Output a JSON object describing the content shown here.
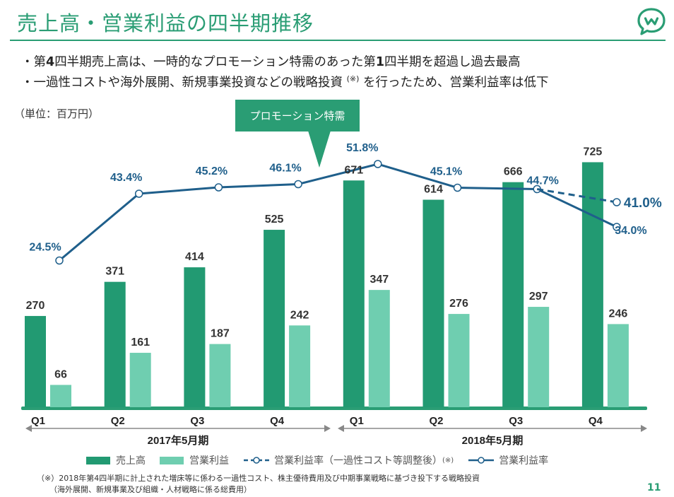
{
  "title": "売上高・営業利益の四半期推移",
  "bullets": {
    "b1_pre": "・第",
    "b1_num1": "4",
    "b1_mid": "四半期売上高は、一時的なプロモーション特需のあった第",
    "b1_num2": "1",
    "b1_post": "四半期を超過し過去最高",
    "b2_pre": "・一過性コストや海外展開、新規事業投資などの戦略投資",
    "b2_note": "(※)",
    "b2_post": "を行ったため、営業利益率は低下"
  },
  "unit_label": "（単位：百万円）",
  "callout": "プロモーション特需",
  "period_labels": [
    "2017年5月期",
    "2018年5月期"
  ],
  "legend": {
    "sales": "売上高",
    "op_income": "営業利益",
    "margin_adj": "営業利益率（一過性コスト等調整後）",
    "margin_adj_note": "(※)",
    "margin": "営業利益率"
  },
  "footnote": {
    "line1": "（※）2018年第4四半期に計上された増床等に係わる一過性コスト、株主優待費用及び中期事業戦略に基づき投下する戦略投資",
    "line2": "（海外展開、新規事業及び組織・人材戦略に係る総費用）"
  },
  "page_number": "11",
  "colors": {
    "brand": "#2a9d74",
    "sales": "#229a72",
    "op_income": "#6fceb0",
    "line": "#1f5f8b"
  },
  "chart_data": {
    "type": "bar",
    "title": "",
    "xlabel": "",
    "ylabel": "百万円",
    "categories": [
      "Q1",
      "Q2",
      "Q3",
      "Q4",
      "Q1",
      "Q2",
      "Q3",
      "Q4"
    ],
    "ylim": [
      0,
      760
    ],
    "series": [
      {
        "name": "売上高",
        "values": [
          270,
          371,
          414,
          525,
          671,
          614,
          666,
          725
        ]
      },
      {
        "name": "営業利益",
        "values": [
          66,
          161,
          187,
          242,
          347,
          276,
          297,
          246
        ]
      }
    ],
    "lines": [
      {
        "name": "営業利益率",
        "values": [
          24.5,
          43.4,
          45.2,
          46.1,
          51.8,
          45.1,
          44.7,
          34.0
        ],
        "labels": [
          "24.5%",
          "43.4%",
          "45.2%",
          "46.1%",
          "51.8%",
          "45.1%",
          "44.7%",
          "34.0%"
        ],
        "style": "solid"
      },
      {
        "name": "営業利益率（一過性コスト等調整後）",
        "from_index": 6,
        "values": [
          44.7,
          41.0
        ],
        "labels": [
          "",
          "41.0%"
        ],
        "style": "dashed"
      }
    ],
    "secondary_ylim": [
      0,
      100
    ]
  }
}
